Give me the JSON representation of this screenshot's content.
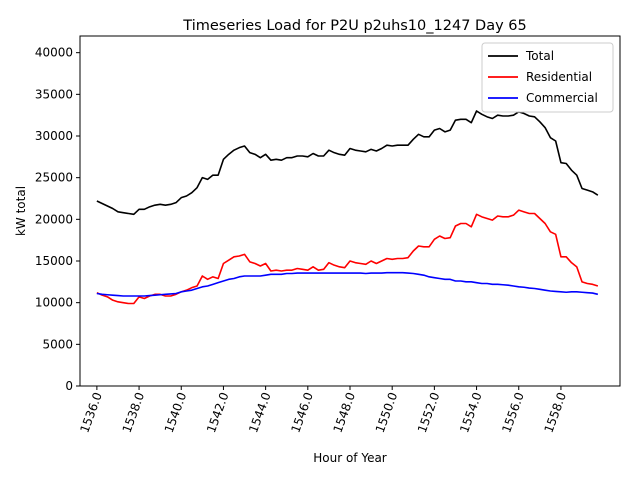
{
  "chart_data": {
    "type": "line",
    "title": "Timeseries Load for P2U p2uhs10_1247  Day 65",
    "xlabel": "Hour of Year",
    "ylabel": "kW total",
    "xlim": [
      1535.2,
      1560.8
    ],
    "ylim": [
      0,
      42000
    ],
    "xticks": [
      1536,
      1538,
      1540,
      1542,
      1544,
      1546,
      1548,
      1550,
      1552,
      1554,
      1556,
      1558
    ],
    "xtick_labels": [
      "1536.0",
      "1538.0",
      "1540.0",
      "1542.0",
      "1544.0",
      "1546.0",
      "1548.0",
      "1550.0",
      "1552.0",
      "1554.0",
      "1556.0",
      "1558.0"
    ],
    "yticks": [
      0,
      5000,
      10000,
      15000,
      20000,
      25000,
      30000,
      35000,
      40000
    ],
    "ytick_labels": [
      "0",
      "5000",
      "10000",
      "15000",
      "20000",
      "25000",
      "30000",
      "35000",
      "40000"
    ],
    "legend_position": "top-right",
    "x_start": 1536,
    "x_step": 0.25,
    "series": [
      {
        "name": "Total",
        "color": "#000000",
        "values": [
          22200,
          21900,
          21600,
          21300,
          20900,
          20800,
          20700,
          20600,
          21200,
          21200,
          21500,
          21700,
          21800,
          21700,
          21800,
          22000,
          22600,
          22800,
          23200,
          23800,
          25000,
          24800,
          25300,
          25300,
          27200,
          27800,
          28300,
          28600,
          28800,
          28000,
          27800,
          27400,
          27800,
          27100,
          27200,
          27100,
          27400,
          27400,
          27600,
          27600,
          27500,
          27900,
          27600,
          27600,
          28300,
          28000,
          27800,
          27700,
          28500,
          28300,
          28200,
          28100,
          28400,
          28200,
          28500,
          28900,
          28800,
          28900,
          28900,
          28900,
          29600,
          30200,
          29900,
          29900,
          30700,
          30900,
          30500,
          30700,
          31900,
          32000,
          32000,
          31600,
          33000,
          32600,
          32300,
          32100,
          32500,
          32400,
          32400,
          32500,
          32900,
          32700,
          32400,
          32300,
          31700,
          31000,
          29800,
          29400,
          26800,
          26700,
          25900,
          25300,
          23700,
          23500,
          23300,
          22900
        ]
      },
      {
        "name": "Residential",
        "color": "#ff0000",
        "values": [
          11200,
          10900,
          10700,
          10300,
          10100,
          10000,
          9900,
          9900,
          10700,
          10500,
          10800,
          11000,
          11000,
          10800,
          10800,
          11000,
          11300,
          11500,
          11800,
          12000,
          13200,
          12800,
          13100,
          12900,
          14700,
          15100,
          15500,
          15600,
          15800,
          14900,
          14700,
          14400,
          14700,
          13800,
          13900,
          13800,
          13900,
          13900,
          14100,
          14000,
          13900,
          14300,
          13900,
          14000,
          14800,
          14500,
          14300,
          14200,
          15000,
          14800,
          14700,
          14600,
          15000,
          14700,
          15000,
          15300,
          15200,
          15300,
          15300,
          15400,
          16200,
          16800,
          16700,
          16700,
          17600,
          18000,
          17700,
          17800,
          19200,
          19500,
          19500,
          19100,
          20600,
          20300,
          20100,
          19900,
          20400,
          20300,
          20300,
          20500,
          21100,
          20900,
          20700,
          20700,
          20100,
          19500,
          18500,
          18200,
          15500,
          15500,
          14800,
          14300,
          12500,
          12300,
          12200,
          12000
        ]
      },
      {
        "name": "Commercial",
        "color": "#0000ff",
        "values": [
          11100,
          11000,
          10950,
          10900,
          10850,
          10800,
          10800,
          10800,
          10800,
          10800,
          10850,
          10900,
          10950,
          11000,
          11050,
          11100,
          11300,
          11400,
          11500,
          11700,
          11900,
          12000,
          12200,
          12400,
          12600,
          12800,
          12900,
          13100,
          13200,
          13200,
          13200,
          13200,
          13300,
          13400,
          13400,
          13400,
          13500,
          13500,
          13550,
          13550,
          13550,
          13550,
          13550,
          13550,
          13550,
          13550,
          13550,
          13550,
          13550,
          13550,
          13550,
          13500,
          13550,
          13550,
          13550,
          13600,
          13600,
          13600,
          13600,
          13550,
          13500,
          13400,
          13300,
          13100,
          13000,
          12900,
          12800,
          12800,
          12600,
          12600,
          12500,
          12500,
          12400,
          12300,
          12300,
          12200,
          12200,
          12150,
          12100,
          12000,
          11900,
          11850,
          11750,
          11700,
          11600,
          11500,
          11400,
          11350,
          11300,
          11250,
          11300,
          11300,
          11250,
          11200,
          11150,
          11000
        ]
      }
    ]
  }
}
